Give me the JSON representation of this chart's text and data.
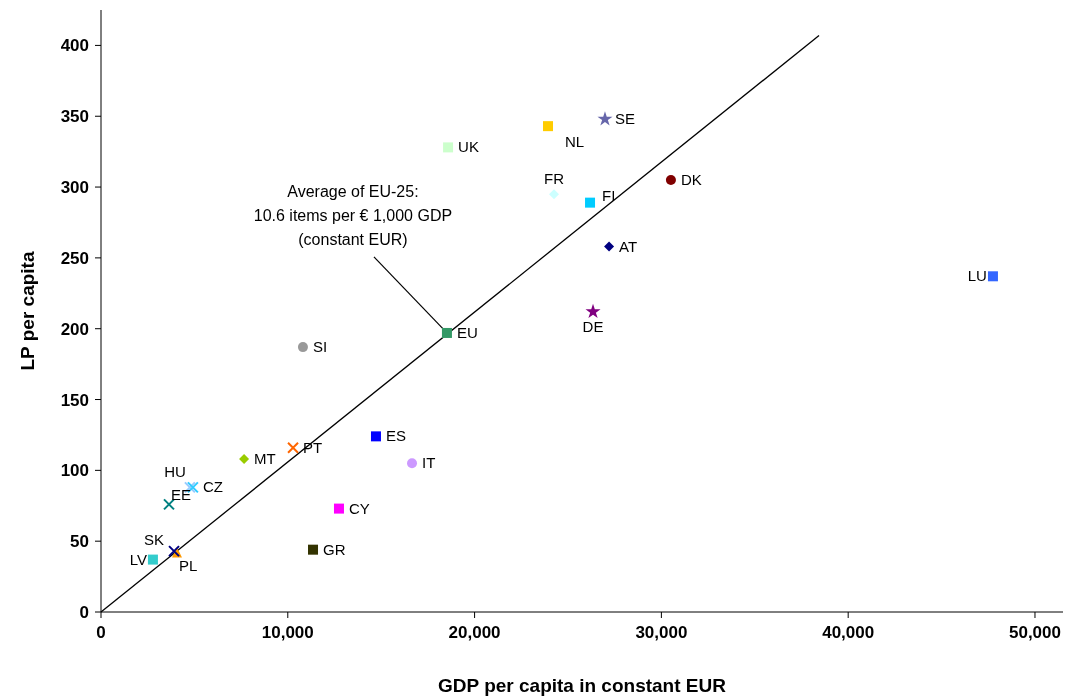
{
  "chart_data": {
    "type": "scatter",
    "xlabel": "GDP per capita in constant EUR",
    "ylabel": "LP per capita",
    "xlim": [
      0,
      51500
    ],
    "ylim": [
      0,
      425
    ],
    "xticks": [
      0,
      {
        "value": 10000,
        "label": "10,000"
      },
      {
        "value": 20000,
        "label": "20,000"
      },
      {
        "value": 30000,
        "label": "30,000"
      },
      {
        "value": 40000,
        "label": "40,000"
      },
      {
        "value": 50000,
        "label": "50,000"
      }
    ],
    "yticks": [
      0,
      50,
      100,
      150,
      200,
      250,
      300,
      350,
      400
    ],
    "grid": false,
    "legend": false,
    "annotations": [
      {
        "text": "Average of EU-25:\n10.6 items per € 1,000 GDP\n(constant EUR)",
        "x": 18520,
        "y": 197
      }
    ],
    "series": [
      {
        "type": "line",
        "color": "#000000",
        "x": [
          0,
          38440
        ],
        "values": [
          0,
          407
        ]
      },
      {
        "name": "UK",
        "color": "#ccffcc",
        "marker": "square",
        "x": [
          18580
        ],
        "values": [
          328
        ]
      },
      {
        "name": "NL",
        "color": "#ffcc00",
        "marker": "square",
        "x": [
          23930
        ],
        "values": [
          343
        ]
      },
      {
        "name": "SE",
        "color": "#6666aa",
        "marker": "star",
        "x": [
          26980
        ],
        "values": [
          348
        ]
      },
      {
        "name": "FR",
        "color": "#ccffff",
        "marker": "diamond",
        "x": [
          24250
        ],
        "values": [
          295
        ]
      },
      {
        "name": "FI",
        "color": "#00ccff",
        "marker": "square",
        "x": [
          26180
        ],
        "values": [
          289
        ]
      },
      {
        "name": "DK",
        "color": "#800000",
        "marker": "circle",
        "x": [
          30510
        ],
        "values": [
          305
        ]
      },
      {
        "name": "AT",
        "color": "#000080",
        "marker": "diamond",
        "x": [
          27200
        ],
        "values": [
          258
        ]
      },
      {
        "name": "LU",
        "color": "#3366ff",
        "marker": "square",
        "x": [
          47750
        ],
        "values": [
          237
        ]
      },
      {
        "name": "DE",
        "color": "#800080",
        "marker": "star",
        "x": [
          26340
        ],
        "values": [
          212
        ]
      },
      {
        "name": "EU",
        "color": "#339966",
        "marker": "square",
        "x": [
          18520
        ],
        "values": [
          197
        ]
      },
      {
        "name": "SI",
        "color": "#999999",
        "marker": "circle",
        "x": [
          10810
        ],
        "values": [
          187
        ]
      },
      {
        "name": "ES",
        "color": "#0000ff",
        "marker": "square",
        "x": [
          14720
        ],
        "values": [
          124
        ]
      },
      {
        "name": "IT",
        "color": "#cc99ff",
        "marker": "circle",
        "x": [
          16650
        ],
        "values": [
          105
        ]
      },
      {
        "name": "MT",
        "color": "#99cc00",
        "marker": "diamond",
        "x": [
          7660
        ],
        "values": [
          108
        ]
      },
      {
        "name": "PT",
        "color": "#ff6600",
        "marker": "cross",
        "x": [
          10280
        ],
        "values": [
          116
        ]
      },
      {
        "name": "HU",
        "color": "#99ccff",
        "marker": "cross",
        "x": [
          4760
        ],
        "values": [
          88
        ]
      },
      {
        "name": "CZ",
        "color": "#33ccff",
        "marker": "cross",
        "x": [
          4920
        ],
        "values": [
          88
        ]
      },
      {
        "name": "EE",
        "color": "#008080",
        "marker": "cross",
        "x": [
          3640
        ],
        "values": [
          76
        ]
      },
      {
        "name": "CY",
        "color": "#ff00ff",
        "marker": "square",
        "x": [
          12740
        ],
        "values": [
          73
        ]
      },
      {
        "name": "GR",
        "color": "#333300",
        "marker": "square",
        "x": [
          11350
        ],
        "values": [
          44
        ]
      },
      {
        "name": "PL",
        "color": "#ff9900",
        "marker": "triangle",
        "x": [
          4070
        ],
        "values": [
          42
        ]
      },
      {
        "name": "SK",
        "color": "#000080",
        "marker": "cross",
        "x": [
          3910
        ],
        "values": [
          43
        ]
      },
      {
        "name": "LV",
        "color": "#33cccc",
        "marker": "square",
        "x": [
          2780
        ],
        "values": [
          37
        ]
      }
    ]
  }
}
